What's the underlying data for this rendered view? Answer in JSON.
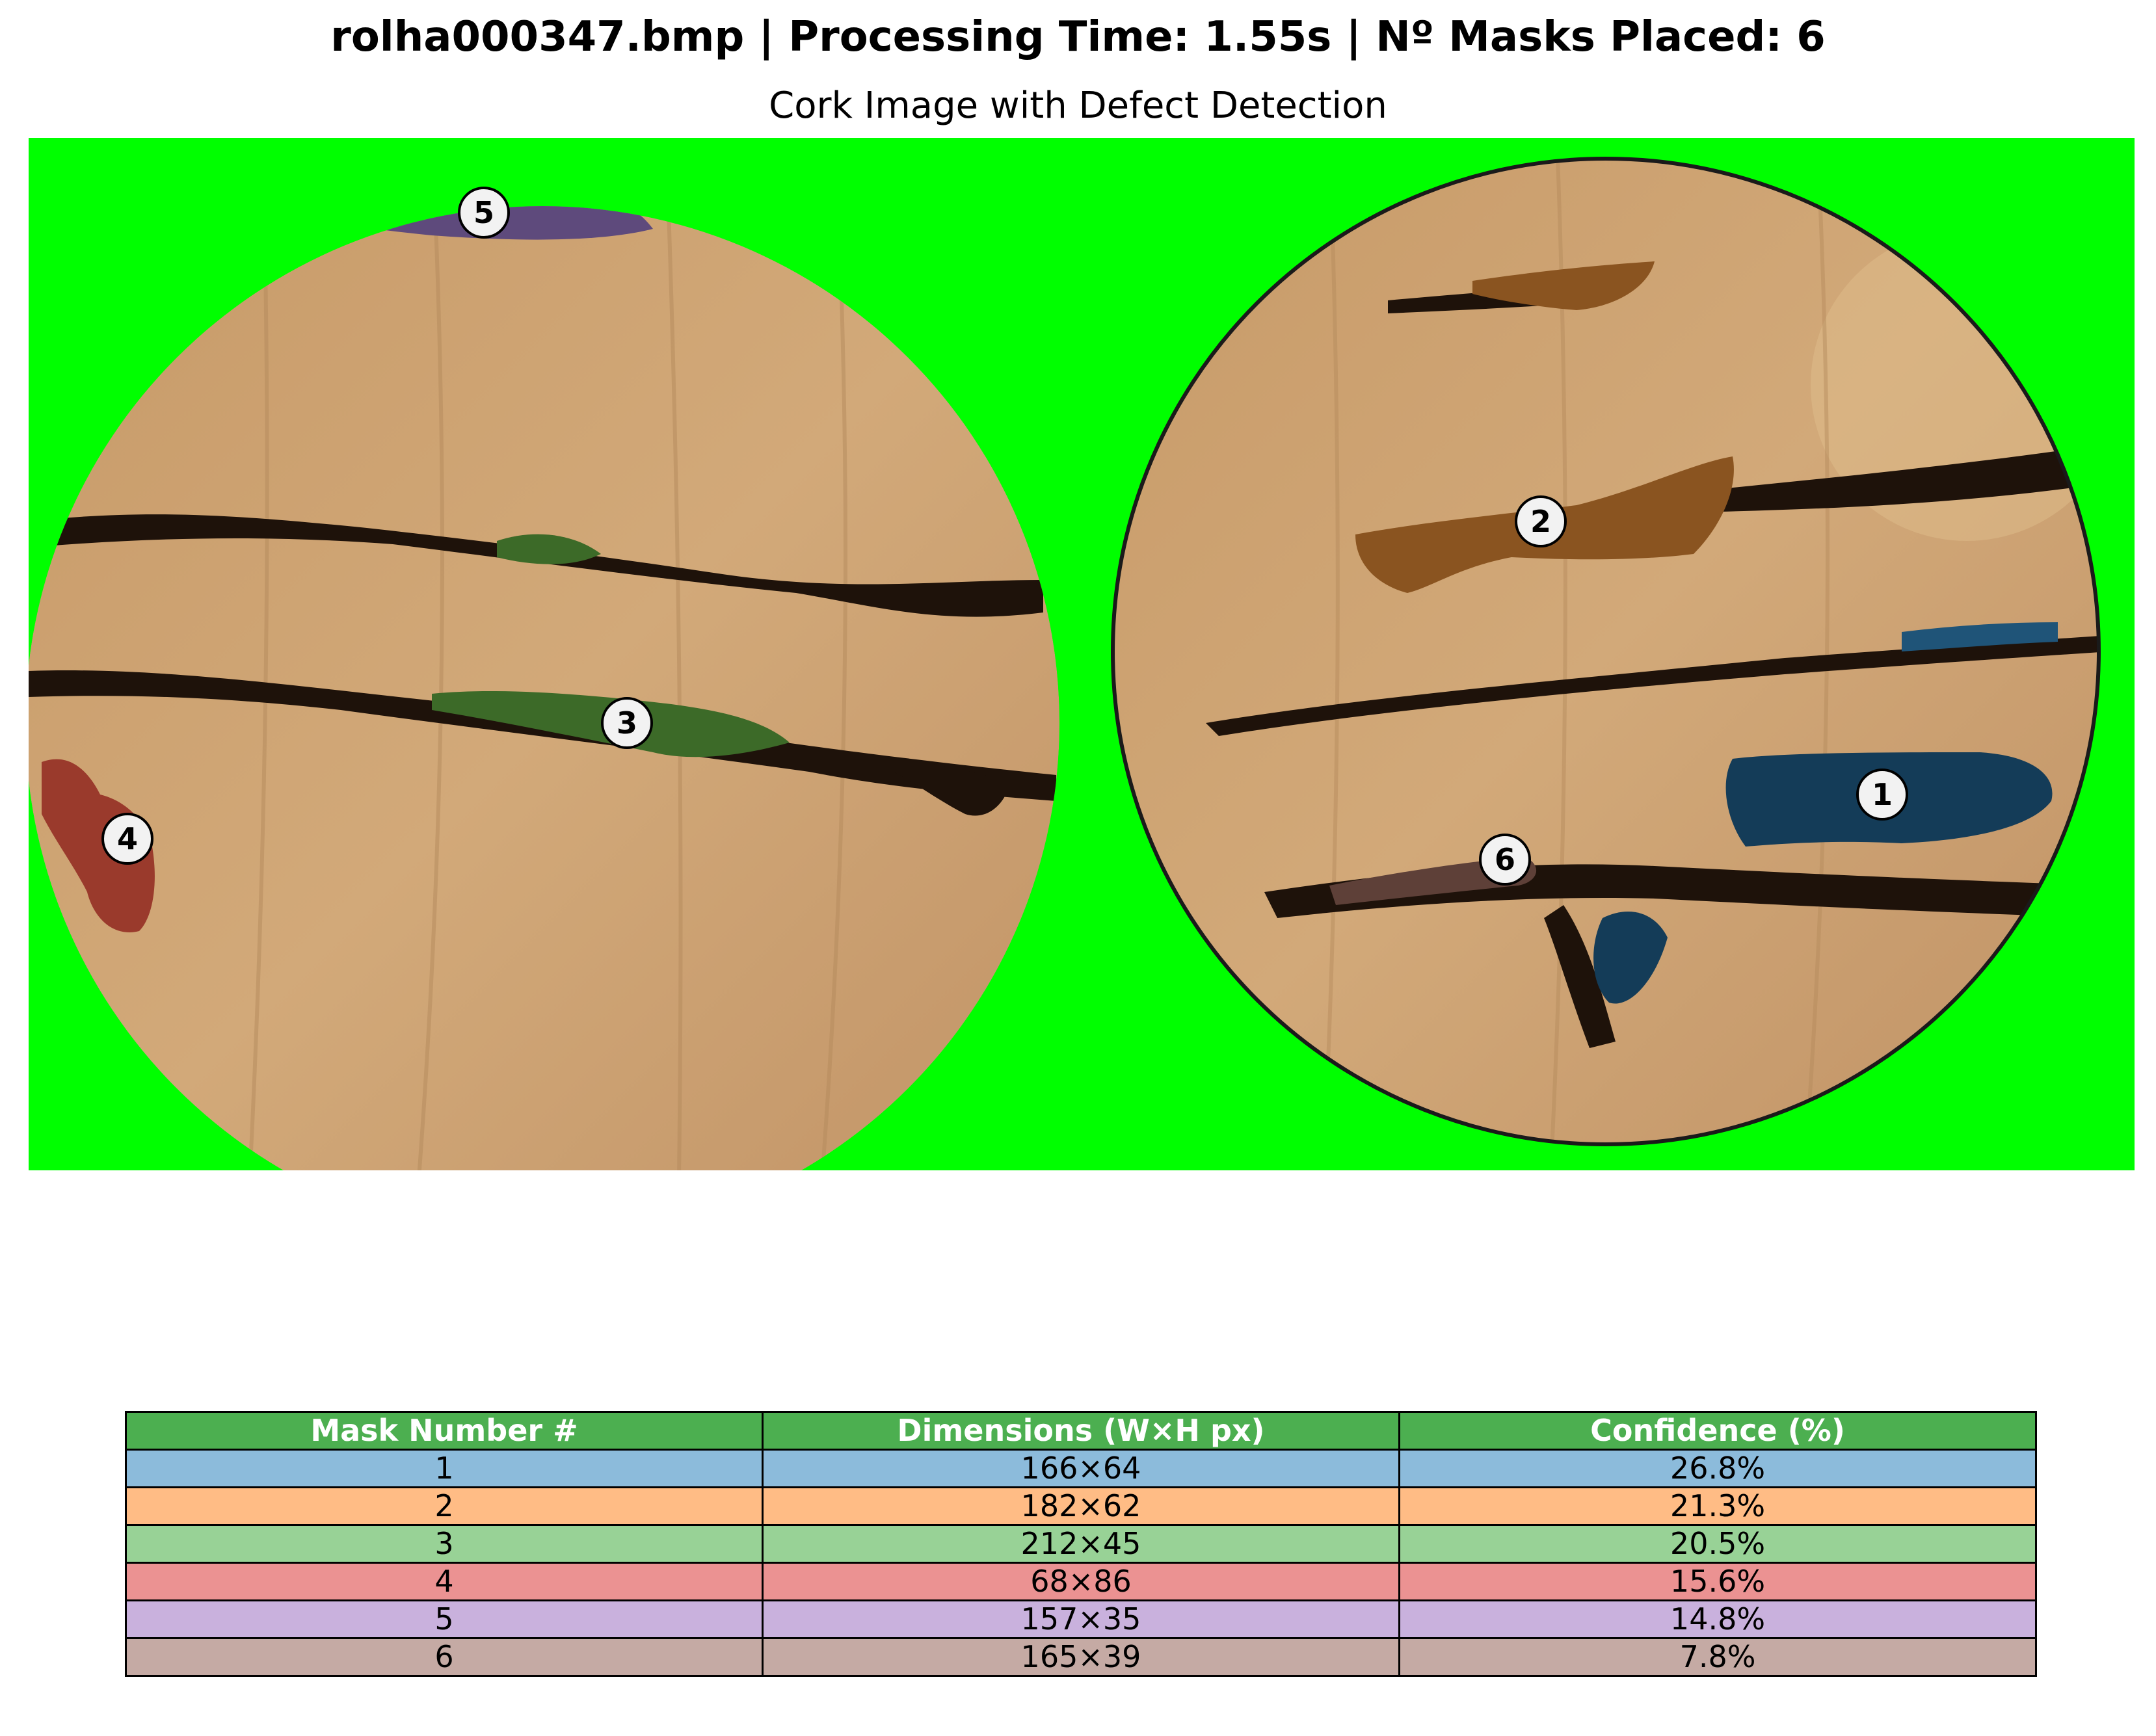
{
  "header": {
    "title": "rolha000347.bmp | Processing Time: 1.55s | Nº Masks Placed: 6",
    "subtitle": "Cork Image with Defect Detection"
  },
  "image": {
    "background_color": "#00ff00",
    "cork_color": "#c9a070",
    "crack_color": "#1e120a",
    "defect_markers": [
      {
        "label": "1",
        "color": "#1f77b4"
      },
      {
        "label": "2",
        "color": "#b8651a"
      },
      {
        "label": "3",
        "color": "#2ca02c"
      },
      {
        "label": "4",
        "color": "#d62728"
      },
      {
        "label": "5",
        "color": "#9467bd"
      },
      {
        "label": "6",
        "color": "#8c564b"
      }
    ]
  },
  "table": {
    "header_color": "#4caf50",
    "headers": [
      "Mask Number #",
      "Dimensions (W×H px)",
      "Confidence (%)"
    ],
    "rows": [
      {
        "cells": [
          "1",
          "166×64",
          "26.8%"
        ],
        "color": "#8cbbdb"
      },
      {
        "cells": [
          "2",
          "182×62",
          "21.3%"
        ],
        "color": "#ffbc85"
      },
      {
        "cells": [
          "3",
          "212×45",
          "20.5%"
        ],
        "color": "#98d296"
      },
      {
        "cells": [
          "4",
          "68×86",
          "15.6%"
        ],
        "color": "#eb9292"
      },
      {
        "cells": [
          "5",
          "157×35",
          "14.8%"
        ],
        "color": "#c9b1dd"
      },
      {
        "cells": [
          "6",
          "165×39",
          "7.8%"
        ],
        "color": "#c5aaa4"
      }
    ]
  }
}
